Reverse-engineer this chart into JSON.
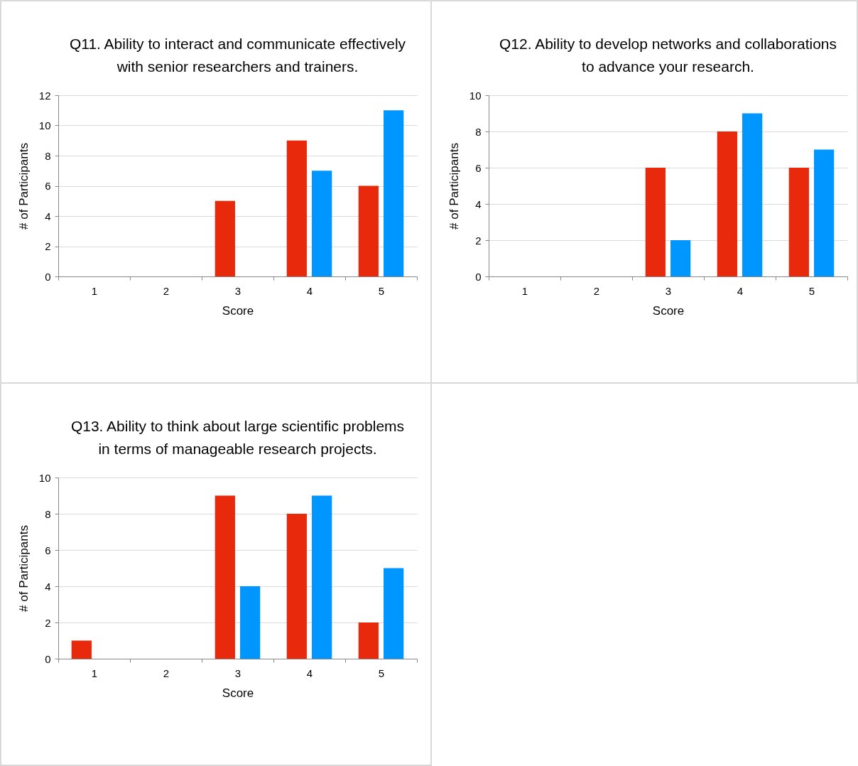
{
  "chart_data": [
    {
      "type": "bar",
      "title": "Q11. Ability to interact and communicate effectively with senior researchers and trainers.",
      "xlabel": "Score",
      "ylabel": "# of Participants",
      "categories": [
        "1",
        "2",
        "3",
        "4",
        "5"
      ],
      "ylim": [
        0,
        12
      ],
      "yticks": [
        0,
        2,
        4,
        6,
        8,
        10,
        12
      ],
      "grid": "y",
      "series": [
        {
          "color": "#e8290b",
          "values": [
            0,
            0,
            5,
            9,
            6
          ]
        },
        {
          "color": "#0096ff",
          "values": [
            0,
            0,
            0,
            7,
            11
          ]
        }
      ]
    },
    {
      "type": "bar",
      "title": "Q12. Ability to develop networks and collaborations to advance your research.",
      "xlabel": "Score",
      "ylabel": "# of Participants",
      "categories": [
        "1",
        "2",
        "3",
        "4",
        "5"
      ],
      "ylim": [
        0,
        10
      ],
      "yticks": [
        0,
        2,
        4,
        6,
        8,
        10
      ],
      "grid": "y",
      "series": [
        {
          "color": "#e8290b",
          "values": [
            0,
            0,
            6,
            8,
            6
          ]
        },
        {
          "color": "#0096ff",
          "values": [
            0,
            0,
            2,
            9,
            7
          ]
        }
      ]
    },
    {
      "type": "bar",
      "title": "Q13. Ability to think about large scientific problems in terms of manageable research projects.",
      "xlabel": "Score",
      "ylabel": "# of Participants",
      "categories": [
        "1",
        "2",
        "3",
        "4",
        "5"
      ],
      "ylim": [
        0,
        10
      ],
      "yticks": [
        0,
        2,
        4,
        6,
        8,
        10
      ],
      "grid": "y",
      "series": [
        {
          "color": "#e8290b",
          "values": [
            1,
            0,
            9,
            8,
            2
          ]
        },
        {
          "color": "#0096ff",
          "values": [
            0,
            0,
            4,
            9,
            5
          ]
        }
      ]
    }
  ]
}
